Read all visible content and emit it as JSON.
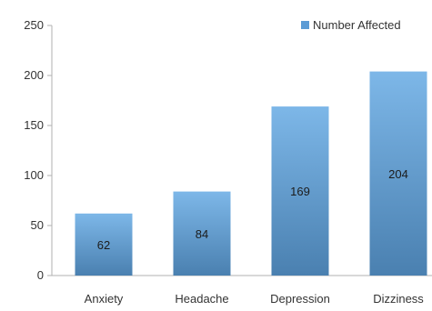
{
  "chart_data": {
    "type": "bar",
    "categories": [
      "Anxiety",
      "Headache",
      "Depression",
      "Dizziness"
    ],
    "series": [
      {
        "name": "Number Affected",
        "values": [
          62,
          84,
          169,
          204
        ],
        "color": "#5b9bd5"
      }
    ],
    "data_labels": [
      "62",
      "84",
      "169",
      "204"
    ],
    "ylim": [
      0,
      250
    ],
    "yticks": [
      0,
      50,
      100,
      150,
      200,
      250
    ],
    "grid": false,
    "legend_position": "top-right",
    "colors": {
      "bar_top": "#7db7e8",
      "bar_bottom": "#4a80b0",
      "axis": "#b0b0b0"
    }
  }
}
